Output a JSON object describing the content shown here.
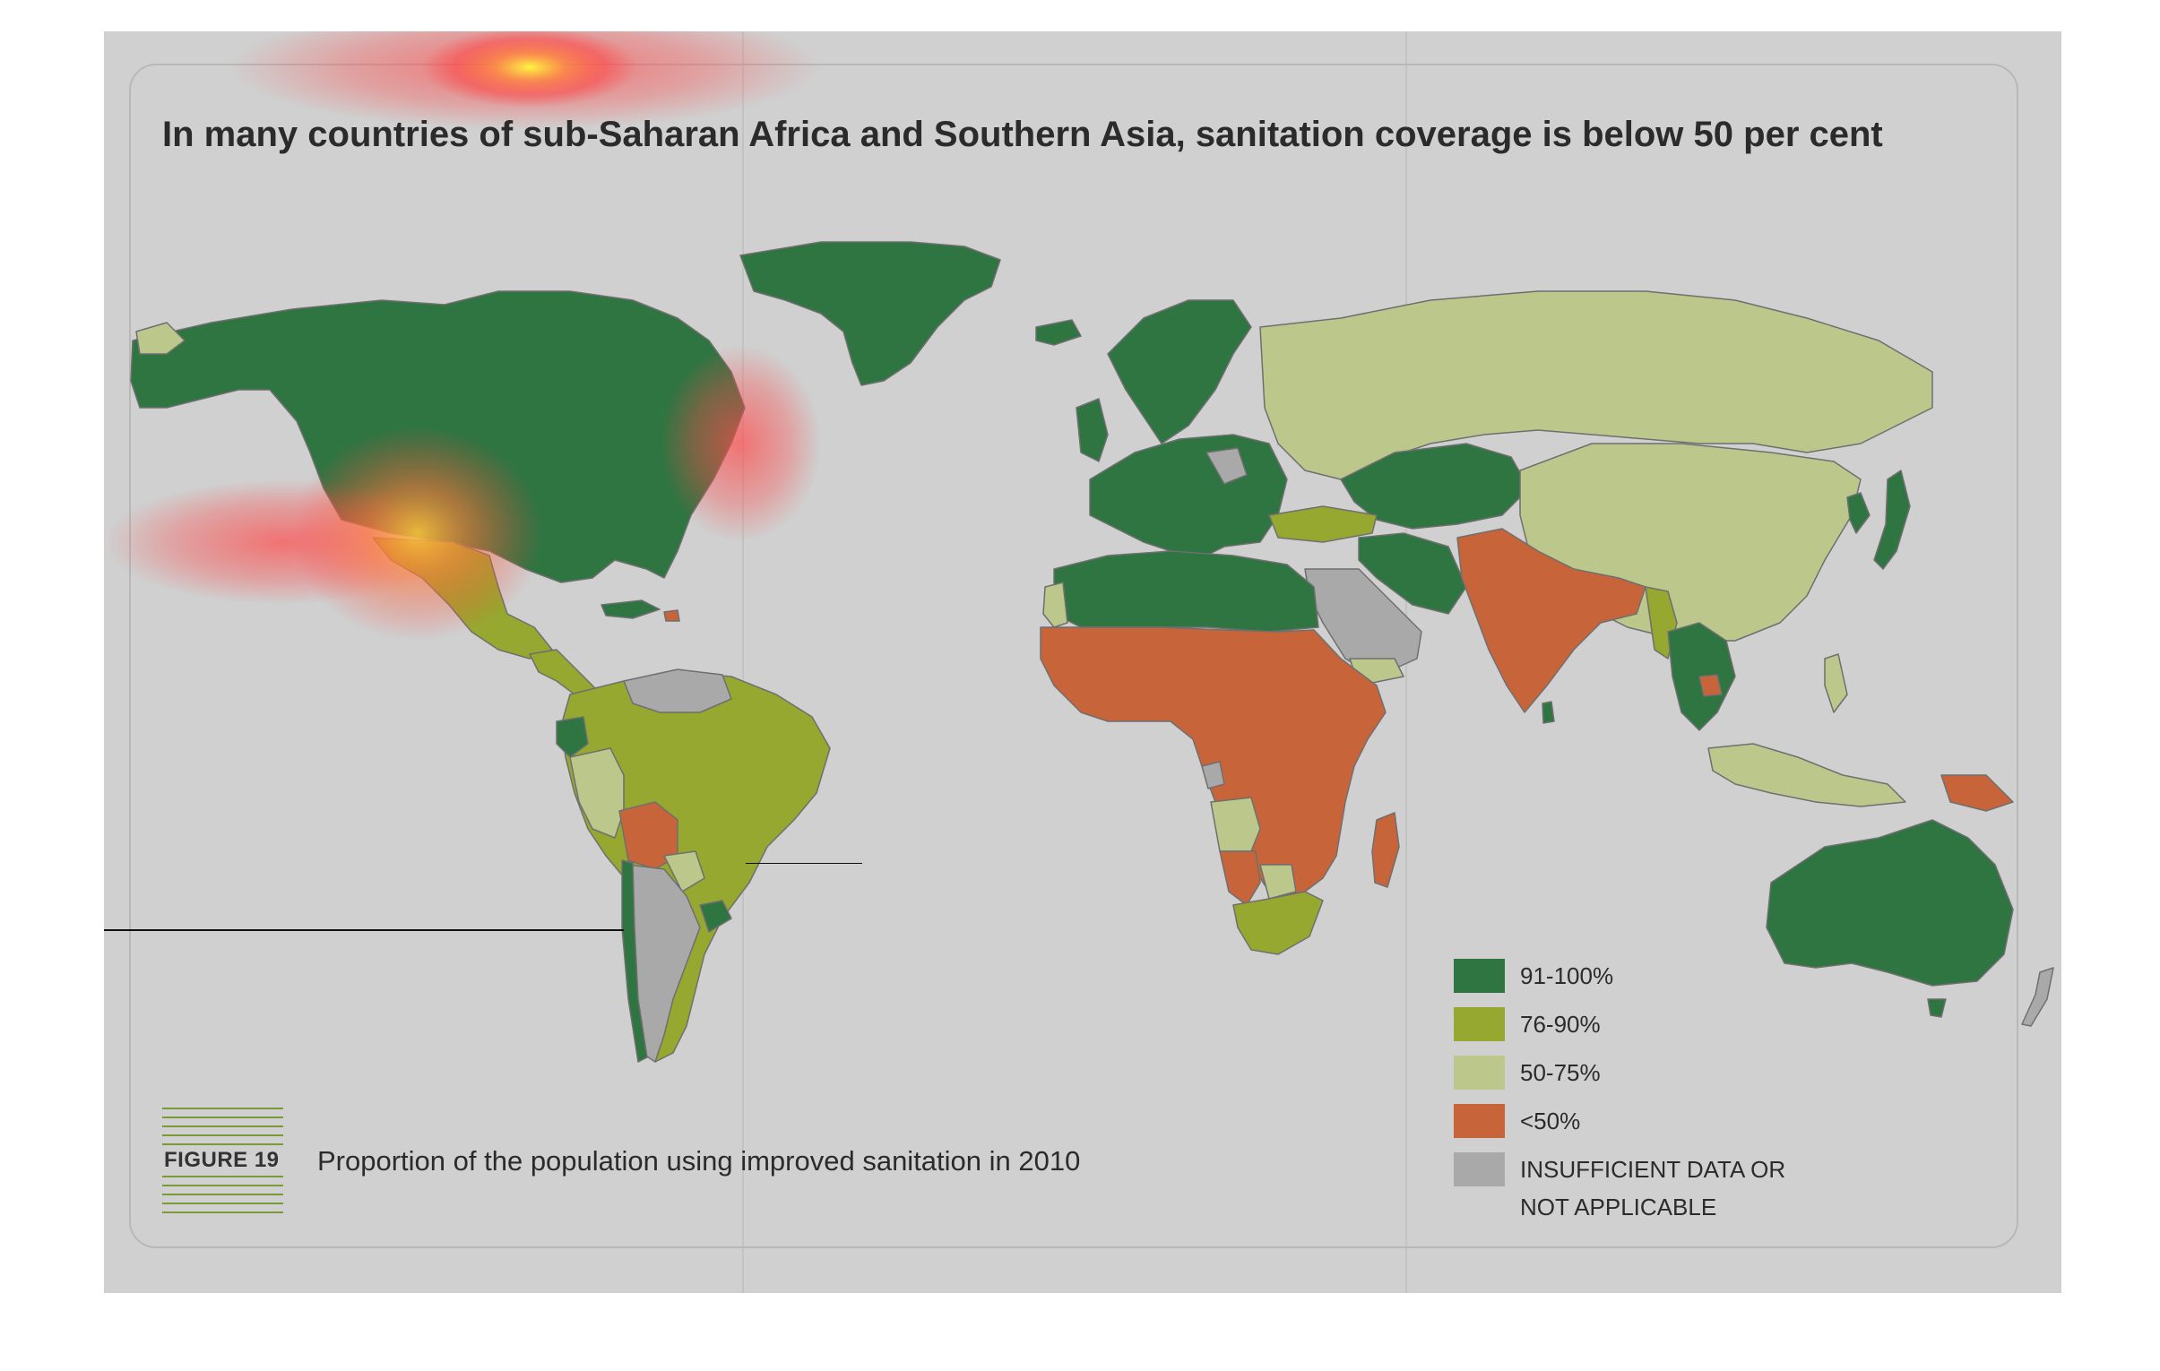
{
  "title": "In many countries of sub-Saharan Africa and Southern Asia, sanitation coverage is below 50 per cent",
  "figure_label": "FIGURE 19",
  "caption": "Proportion of the population using improved sanitation in 2010",
  "legend": {
    "items": [
      {
        "label": "91-100%",
        "color": "#2e7542"
      },
      {
        "label": "76-90%",
        "color": "#96a82f"
      },
      {
        "label": "50-75%",
        "color": "#bcc78c"
      },
      {
        "label": "<50%",
        "color": "#c8643a"
      },
      {
        "label": "INSUFFICIENT DATA OR",
        "label2": "NOT APPLICABLE",
        "color": "#a9a9a9"
      }
    ]
  },
  "colors": {
    "background": "#d0d0d0",
    "high": "#2e7542",
    "mid": "#96a82f",
    "low": "#bcc78c",
    "verylow": "#c8643a",
    "nodata": "#a9a9a9"
  }
}
